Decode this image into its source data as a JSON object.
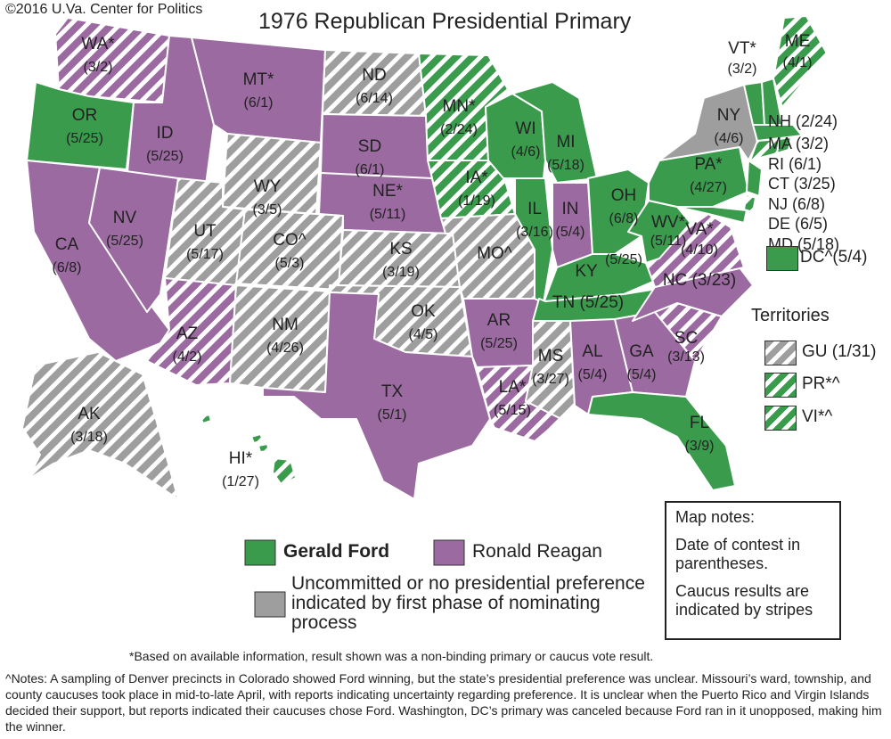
{
  "copyright": "©2016 U.Va. Center for Politics",
  "title": "1976 Republican Presidential Primary",
  "colors": {
    "ford": "#3a9b4d",
    "reagan": "#9b6aa0",
    "uncommitted": "#9e9e9e",
    "stripe_bg": "#ffffff"
  },
  "states": {
    "WA": {
      "label": "WA*",
      "date": "(3/2)",
      "winner": "reagan",
      "caucus": true
    },
    "OR": {
      "label": "OR",
      "date": "(5/25)",
      "winner": "ford",
      "caucus": false
    },
    "CA": {
      "label": "CA",
      "date": "(6/8)",
      "winner": "reagan",
      "caucus": false
    },
    "ID": {
      "label": "ID",
      "date": "(5/25)",
      "winner": "reagan",
      "caucus": false
    },
    "NV": {
      "label": "NV",
      "date": "(5/25)",
      "winner": "reagan",
      "caucus": false
    },
    "MT": {
      "label": "MT*",
      "date": "(6/1)",
      "winner": "reagan",
      "caucus": false
    },
    "WY": {
      "label": "WY",
      "date": "(3/5)",
      "winner": "uncommitted",
      "caucus": true
    },
    "UT": {
      "label": "UT",
      "date": "(5/17)",
      "winner": "uncommitted",
      "caucus": true
    },
    "AZ": {
      "label": "AZ",
      "date": "(4/2)",
      "winner": "reagan",
      "caucus": true
    },
    "CO": {
      "label": "CO^",
      "date": "(5/3)",
      "winner": "uncommitted",
      "caucus": true
    },
    "NM": {
      "label": "NM",
      "date": "(4/26)",
      "winner": "uncommitted",
      "caucus": true
    },
    "ND": {
      "label": "ND",
      "date": "(6/14)",
      "winner": "uncommitted",
      "caucus": true
    },
    "SD": {
      "label": "SD",
      "date": "(6/1)",
      "winner": "reagan",
      "caucus": false
    },
    "NE": {
      "label": "NE*",
      "date": "(5/11)",
      "winner": "reagan",
      "caucus": false
    },
    "KS": {
      "label": "KS",
      "date": "(3/19)",
      "winner": "uncommitted",
      "caucus": true
    },
    "OK": {
      "label": "OK",
      "date": "(4/5)",
      "winner": "uncommitted",
      "caucus": true
    },
    "TX": {
      "label": "TX",
      "date": "(5/1)",
      "winner": "reagan",
      "caucus": false
    },
    "MN": {
      "label": "MN*",
      "date": "(2/24)",
      "winner": "ford",
      "caucus": true
    },
    "IA": {
      "label": "IA*",
      "date": "(1/19)",
      "winner": "ford",
      "caucus": true
    },
    "MO": {
      "label": "MO^",
      "date": "",
      "winner": "uncommitted",
      "caucus": true
    },
    "AR": {
      "label": "AR",
      "date": "(5/25)",
      "winner": "reagan",
      "caucus": false
    },
    "LA": {
      "label": "LA*",
      "date": "(5/15)",
      "winner": "reagan",
      "caucus": true
    },
    "WI": {
      "label": "WI",
      "date": "(4/6)",
      "winner": "ford",
      "caucus": false
    },
    "IL": {
      "label": "IL",
      "date": "(3/16)",
      "winner": "ford",
      "caucus": false
    },
    "MI": {
      "label": "MI",
      "date": "(5/18)",
      "winner": "ford",
      "caucus": false
    },
    "IN": {
      "label": "IN",
      "date": "(5/4)",
      "winner": "reagan",
      "caucus": false
    },
    "OH": {
      "label": "OH",
      "date": "(6/8)",
      "winner": "ford",
      "caucus": false
    },
    "KY": {
      "label": "KY",
      "date": "(5/25)",
      "winner": "ford",
      "caucus": false
    },
    "TN": {
      "label": "TN",
      "date": "(5/25)",
      "winner": "ford",
      "caucus": false
    },
    "MS": {
      "label": "MS",
      "date": "(3/27)",
      "winner": "uncommitted",
      "caucus": true
    },
    "AL": {
      "label": "AL",
      "date": "(5/4)",
      "winner": "reagan",
      "caucus": false
    },
    "GA": {
      "label": "GA",
      "date": "(5/4)",
      "winner": "reagan",
      "caucus": false
    },
    "FL": {
      "label": "FL",
      "date": "(3/9)",
      "winner": "ford",
      "caucus": false
    },
    "SC": {
      "label": "SC",
      "date": "(3/13)",
      "winner": "reagan",
      "caucus": true
    },
    "NC": {
      "label": "NC",
      "date": "(3/23)",
      "winner": "reagan",
      "caucus": false
    },
    "VA": {
      "label": "VA*",
      "date": "(4/10)",
      "winner": "reagan",
      "caucus": true
    },
    "WV": {
      "label": "WV*",
      "date": "(5/11)",
      "winner": "ford",
      "caucus": false
    },
    "PA": {
      "label": "PA*",
      "date": "(4/27)",
      "winner": "ford",
      "caucus": false
    },
    "NY": {
      "label": "NY",
      "date": "(4/6)",
      "winner": "uncommitted",
      "caucus": false
    },
    "VT": {
      "label": "VT*",
      "date": "(3/2)",
      "winner": "ford",
      "caucus": false
    },
    "ME": {
      "label": "ME",
      "date": "(4/1)",
      "winner": "ford",
      "caucus": true
    },
    "NH": {
      "label": "NH",
      "date": "(2/24)",
      "winner": "ford",
      "caucus": false
    },
    "MA": {
      "label": "MA",
      "date": "(3/2)",
      "winner": "ford",
      "caucus": false
    },
    "RI": {
      "label": "RI",
      "date": "(6/1)",
      "winner": "ford",
      "caucus": false
    },
    "CT": {
      "label": "CT",
      "date": "(3/25)",
      "winner": "ford",
      "caucus": true
    },
    "NJ": {
      "label": "NJ",
      "date": "(6/8)",
      "winner": "ford",
      "caucus": false
    },
    "DE": {
      "label": "DE",
      "date": "(6/5)",
      "winner": "ford",
      "caucus": true
    },
    "MD": {
      "label": "MD",
      "date": "(5/18)",
      "winner": "ford",
      "caucus": false
    },
    "DC": {
      "label": "DC^",
      "date": "(5/4)",
      "winner": "ford",
      "caucus": false
    },
    "AK": {
      "label": "AK",
      "date": "(3/18)",
      "winner": "uncommitted",
      "caucus": true
    },
    "HI": {
      "label": "HI*",
      "date": "(1/27)",
      "winner": "ford",
      "caucus": true
    }
  },
  "territories": {
    "title": "Territories",
    "items": [
      {
        "label": "GU",
        "date": "(1/31)",
        "winner": "uncommitted"
      },
      {
        "label": "PR*^",
        "date": "",
        "winner": "ford"
      },
      {
        "label": "VI*^",
        "date": "",
        "winner": "ford"
      }
    ]
  },
  "map_notes": {
    "heading": "Map notes:",
    "date_note": "Date of contest in parentheses.",
    "caucus_note": "Caucus results are indicated by stripes"
  },
  "legend": {
    "ford": "Gerald Ford",
    "reagan": "Ronald Reagan",
    "uncommitted": "Uncommitted or no presidential preference indicated by first phase of nominating process"
  },
  "footnote": "*Based on available information, result shown was a non-binding primary or caucus vote result.",
  "notes": "^Notes:  A sampling of Denver precincts in Colorado showed Ford winning, but the state’s presidential preference was unclear. Missouri’s ward, township, and county caucuses took place in mid-to-late April, with reports indicating uncertainty regarding preference. It is unclear when the Puerto Rico and Virgin Islands decided their support, but reports indicated their caucuses chose Ford. Washington, DC’s primary was canceled because Ford ran in it unopposed, making him the winner."
}
